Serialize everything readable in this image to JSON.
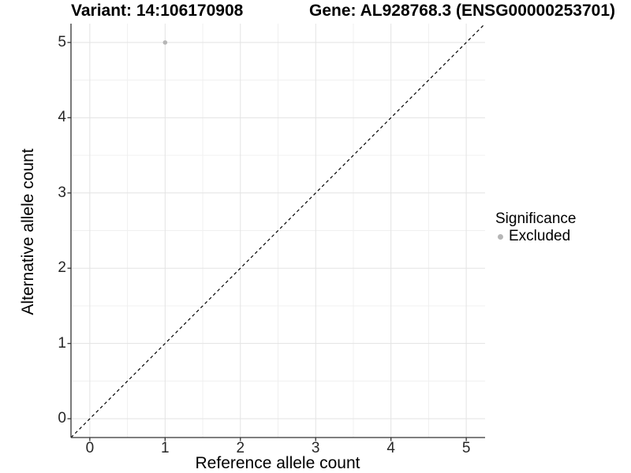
{
  "titles": {
    "variant": "Variant: 14:106170908",
    "gene": "Gene: AL928768.3 (ENSG00000253701)"
  },
  "legend": {
    "title": "Significance",
    "items": [
      {
        "label": "Excluded",
        "color": "#b6b6b6"
      }
    ]
  },
  "chart_data": {
    "type": "scatter",
    "title_left": "Variant: 14:106170908",
    "title_right": "Gene: AL928768.3 (ENSG00000253701)",
    "xlabel": "Reference allele count",
    "ylabel": "Alternative allele count",
    "xlim": [
      -0.25,
      5.25
    ],
    "ylim": [
      -0.25,
      5.25
    ],
    "x_ticks": [
      0,
      1,
      2,
      3,
      4,
      5
    ],
    "y_ticks": [
      0,
      1,
      2,
      3,
      4,
      5
    ],
    "x_minor_ticks": [
      0.5,
      1.5,
      2.5,
      3.5,
      4.5
    ],
    "y_minor_ticks": [
      0.5,
      1.5,
      2.5,
      3.5,
      4.5
    ],
    "grid": true,
    "legend_position": "right",
    "series": [
      {
        "name": "Excluded",
        "color": "#b6b6b6",
        "points": [
          {
            "x": 1,
            "y": 5
          }
        ]
      }
    ],
    "reference_line": {
      "type": "abline",
      "slope": 1,
      "intercept": 0,
      "style": "dashed",
      "color": "#000000"
    }
  },
  "colors": {
    "background": "#ffffff",
    "major_grid": "#e3e3e3",
    "minor_grid": "#f0f0f0",
    "axis_line": "#333333",
    "tick_text": "#262626",
    "point": "#b6b6b6",
    "dashed_line": "#000000"
  }
}
